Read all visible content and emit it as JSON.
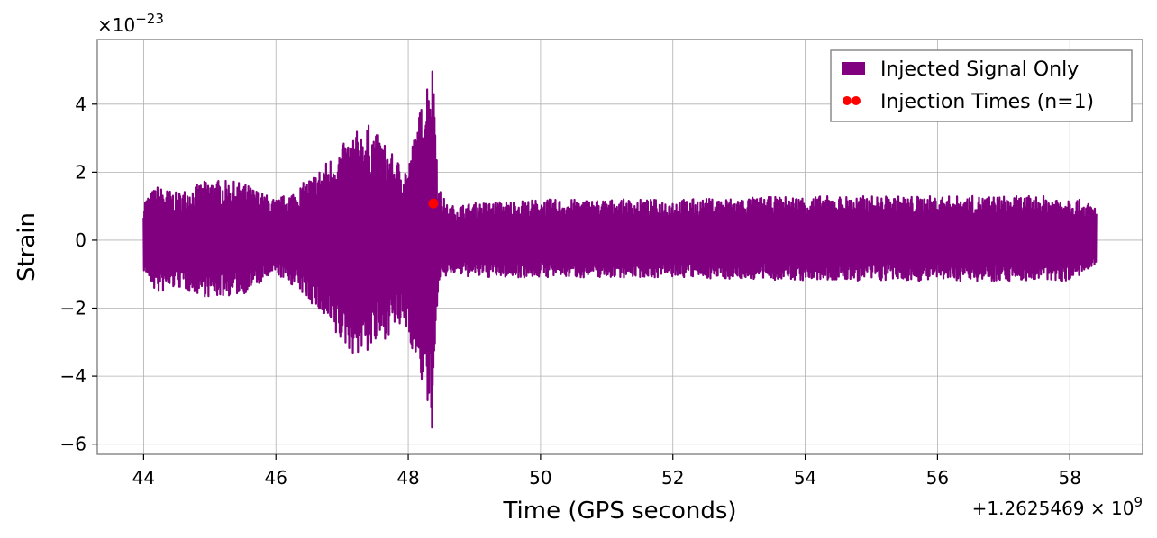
{
  "chart_data": {
    "type": "line",
    "xlabel": "Time (GPS seconds)",
    "ylabel": "Strain",
    "x_offset_text": "+1.2625469 × 10",
    "x_offset_exp": "9",
    "y_multiplier_text": "×10",
    "y_multiplier_exp": "−23",
    "xlim": [
      43.3,
      59.1
    ],
    "ylim": [
      -6.3,
      5.9
    ],
    "x_ticks": [
      44,
      46,
      48,
      50,
      52,
      54,
      56,
      58
    ],
    "x_tick_labels": [
      "44",
      "46",
      "48",
      "50",
      "52",
      "54",
      "56",
      "58"
    ],
    "y_ticks": [
      4,
      2,
      0,
      -2,
      -4,
      -6
    ],
    "y_tick_labels": [
      "4",
      "2",
      "0",
      "−2",
      "−4",
      "−6"
    ],
    "grid": true,
    "legend": {
      "placement": "top-right",
      "entries": [
        "Injected Signal Only",
        "Injection Times (n=1)"
      ]
    },
    "series": [
      {
        "name": "Injected Signal Only",
        "color": "#800080",
        "envelope": {
          "x": [
            44.0,
            44.2,
            44.5,
            45.0,
            45.5,
            46.0,
            46.3,
            46.6,
            46.9,
            47.2,
            47.4,
            47.6,
            47.8,
            48.0,
            48.1,
            48.2,
            48.3,
            48.35,
            48.4,
            48.45,
            48.6,
            49.0,
            50.0,
            52.0,
            54.0,
            56.0,
            58.0,
            58.4
          ],
          "upper": [
            1.2,
            1.6,
            1.4,
            1.8,
            1.7,
            1.2,
            1.5,
            2.0,
            2.6,
            3.2,
            3.4,
            3.0,
            2.4,
            2.2,
            3.2,
            4.0,
            5.0,
            5.4,
            4.8,
            1.6,
            1.0,
            1.1,
            1.2,
            1.2,
            1.3,
            1.3,
            1.3,
            1.0
          ],
          "lower": [
            -0.9,
            -1.6,
            -1.4,
            -1.7,
            -1.6,
            -1.0,
            -1.4,
            -2.0,
            -2.9,
            -3.4,
            -3.3,
            -3.0,
            -2.6,
            -2.7,
            -3.6,
            -4.2,
            -5.2,
            -5.8,
            -4.6,
            -1.4,
            -1.0,
            -1.1,
            -1.1,
            -1.1,
            -1.2,
            -1.2,
            -1.2,
            -0.8
          ]
        }
      },
      {
        "name": "Injection Times (n=1)",
        "color": "#ff0000",
        "points": [
          {
            "x": 48.38,
            "y": 1.08
          }
        ]
      }
    ]
  }
}
